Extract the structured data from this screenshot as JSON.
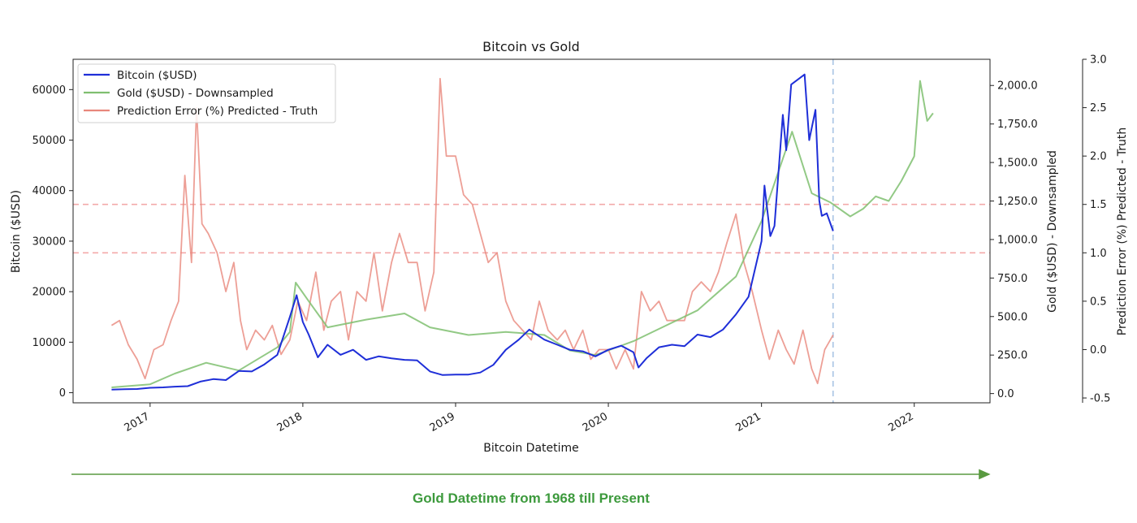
{
  "chart_data": {
    "type": "line",
    "title": "Bitcoin vs Gold",
    "xlabel": "Bitcoin Datetime",
    "x_ticks": [
      "2017",
      "2018",
      "2019",
      "2020",
      "2021",
      "2022"
    ],
    "xlim": [
      "2016-07-01",
      "2022-07-01"
    ],
    "y_axes": [
      {
        "id": "btc",
        "label": "Bitcoin ($USD)",
        "side": "left",
        "ylim": [
          -2000,
          66000
        ],
        "ticks": [
          "0",
          "10000",
          "20000",
          "30000",
          "40000",
          "50000",
          "60000"
        ]
      },
      {
        "id": "gold",
        "label": "Gold ($USD) - Downsampled",
        "side": "right",
        "ylim": [
          -60,
          2170
        ],
        "ticks": [
          "0.0",
          "250.0",
          "500.0",
          "750.0",
          "1,000.0",
          "1,250.0",
          "1,500.0",
          "1,750.0",
          "2,000.0"
        ]
      },
      {
        "id": "err",
        "label": "Prediction Error (%) Predicted - Truth",
        "side": "right-outer",
        "ylim": [
          -0.55,
          3.0
        ],
        "ticks": [
          "-0.5",
          "0.0",
          "0.5",
          "1.0",
          "1.5",
          "2.0",
          "2.5",
          "3.0"
        ]
      }
    ],
    "legend": {
      "placement": "top-left",
      "entries": [
        "Bitcoin ($USD)",
        "Gold ($USD) - Downsampled",
        "Prediction Error (%) Predicted - Truth"
      ]
    },
    "colors": {
      "bitcoin": "#1f2fd8",
      "gold": "#7fbf70",
      "error": "#e8877c",
      "hline": "#f3aaaa",
      "vline": "#a9c4e4",
      "arrow": "#5a9a40"
    },
    "series": [
      {
        "name": "Bitcoin ($USD)",
        "axis": "btc",
        "x": [
          "2016-10-01",
          "2016-11-01",
          "2016-12-01",
          "2017-01-01",
          "2017-02-01",
          "2017-03-01",
          "2017-04-01",
          "2017-05-01",
          "2017-06-01",
          "2017-07-01",
          "2017-08-01",
          "2017-09-01",
          "2017-10-01",
          "2017-11-01",
          "2017-12-01",
          "2017-12-17",
          "2018-01-01",
          "2018-01-15",
          "2018-02-06",
          "2018-03-01",
          "2018-04-01",
          "2018-05-01",
          "2018-06-01",
          "2018-07-01",
          "2018-08-01",
          "2018-09-01",
          "2018-10-01",
          "2018-11-01",
          "2018-12-01",
          "2019-01-01",
          "2019-02-01",
          "2019-03-01",
          "2019-04-01",
          "2019-05-01",
          "2019-06-01",
          "2019-06-26",
          "2019-08-01",
          "2019-09-01",
          "2019-10-01",
          "2019-11-01",
          "2019-12-01",
          "2020-01-01",
          "2020-02-01",
          "2020-03-01",
          "2020-03-13",
          "2020-04-01",
          "2020-05-01",
          "2020-06-01",
          "2020-07-01",
          "2020-08-01",
          "2020-09-01",
          "2020-10-01",
          "2020-11-01",
          "2020-12-01",
          "2021-01-01",
          "2021-01-08",
          "2021-01-22",
          "2021-02-01",
          "2021-02-21",
          "2021-03-01",
          "2021-03-13",
          "2021-04-14",
          "2021-04-25",
          "2021-05-10",
          "2021-05-19",
          "2021-05-25",
          "2021-06-06",
          "2021-06-21"
        ],
        "values": [
          610,
          700,
          740,
          980,
          1050,
          1200,
          1300,
          2200,
          2700,
          2500,
          4300,
          4200,
          5600,
          7500,
          15000,
          19300,
          14000,
          11500,
          7000,
          9500,
          7500,
          8500,
          6500,
          7200,
          6800,
          6500,
          6400,
          4200,
          3500,
          3600,
          3600,
          4000,
          5500,
          8500,
          10500,
          12500,
          10500,
          9500,
          8500,
          8200,
          7200,
          8500,
          9300,
          8000,
          5000,
          6800,
          9000,
          9500,
          9200,
          11500,
          11000,
          12500,
          15500,
          19000,
          30000,
          41000,
          31000,
          33000,
          55000,
          48000,
          61000,
          63000,
          50000,
          56000,
          38000,
          35000,
          35500,
          32000
        ]
      },
      {
        "name": "Gold ($USD) - Downsampled",
        "axis": "gold",
        "x": [
          "2016-10-01",
          "2017-01-01",
          "2017-03-01",
          "2017-05-15",
          "2017-08-01",
          "2017-11-01",
          "2017-12-01",
          "2017-12-15",
          "2018-01-15",
          "2018-03-01",
          "2018-06-01",
          "2018-09-01",
          "2018-11-01",
          "2019-02-01",
          "2019-05-01",
          "2019-08-01",
          "2019-10-01",
          "2019-12-01",
          "2020-03-01",
          "2020-05-01",
          "2020-08-01",
          "2020-11-01",
          "2021-01-01",
          "2021-03-15",
          "2021-05-01",
          "2021-06-15",
          "2021-08-01",
          "2021-09-01",
          "2021-10-01",
          "2021-11-01",
          "2021-12-01",
          "2022-01-01",
          "2022-01-15",
          "2022-02-01",
          "2022-02-15"
        ],
        "values": [
          40,
          60,
          130,
          200,
          150,
          300,
          400,
          720,
          600,
          430,
          480,
          520,
          430,
          380,
          400,
          380,
          280,
          250,
          340,
          420,
          540,
          760,
          1120,
          1700,
          1300,
          1240,
          1150,
          1200,
          1280,
          1250,
          1380,
          1540,
          2030,
          1770,
          1820
        ]
      },
      {
        "name": "Prediction Error (%) Predicted - Truth",
        "axis": "err",
        "x": [
          "2016-10-01",
          "2016-10-20",
          "2016-11-10",
          "2016-12-01",
          "2016-12-20",
          "2017-01-10",
          "2017-02-01",
          "2017-02-20",
          "2017-03-10",
          "2017-03-25",
          "2017-04-10",
          "2017-04-22",
          "2017-05-05",
          "2017-05-20",
          "2017-06-10",
          "2017-07-01",
          "2017-07-20",
          "2017-08-05",
          "2017-08-20",
          "2017-09-10",
          "2017-10-01",
          "2017-10-20",
          "2017-11-10",
          "2017-12-01",
          "2017-12-20",
          "2018-01-10",
          "2018-02-01",
          "2018-02-20",
          "2018-03-10",
          "2018-04-01",
          "2018-04-20",
          "2018-05-10",
          "2018-06-01",
          "2018-06-20",
          "2018-07-10",
          "2018-08-01",
          "2018-08-20",
          "2018-09-10",
          "2018-10-01",
          "2018-10-20",
          "2018-11-10",
          "2018-11-25",
          "2018-12-10",
          "2019-01-01",
          "2019-01-20",
          "2019-02-10",
          "2019-03-01",
          "2019-03-20",
          "2019-04-10",
          "2019-05-01",
          "2019-05-20",
          "2019-06-10",
          "2019-07-01",
          "2019-07-20",
          "2019-08-10",
          "2019-09-01",
          "2019-09-20",
          "2019-10-10",
          "2019-11-01",
          "2019-11-20",
          "2019-12-10",
          "2020-01-01",
          "2020-01-20",
          "2020-02-10",
          "2020-03-01",
          "2020-03-20",
          "2020-04-10",
          "2020-05-01",
          "2020-05-20",
          "2020-06-10",
          "2020-07-01",
          "2020-07-20",
          "2020-08-10",
          "2020-09-01",
          "2020-09-20",
          "2020-10-10",
          "2020-11-01",
          "2020-11-20",
          "2020-12-10",
          "2021-01-01",
          "2021-01-20",
          "2021-02-10",
          "2021-03-01",
          "2021-03-20",
          "2021-04-10",
          "2021-05-01",
          "2021-05-15",
          "2021-06-01",
          "2021-06-21"
        ],
        "values": [
          0.25,
          0.3,
          0.05,
          -0.1,
          -0.3,
          0.0,
          0.05,
          0.3,
          0.5,
          1.8,
          0.9,
          2.5,
          1.3,
          1.2,
          1.0,
          0.6,
          0.9,
          0.3,
          0.0,
          0.2,
          0.1,
          0.25,
          -0.05,
          0.1,
          0.5,
          0.3,
          0.8,
          0.2,
          0.5,
          0.6,
          0.1,
          0.6,
          0.5,
          1.0,
          0.4,
          0.9,
          1.2,
          0.9,
          0.9,
          0.4,
          0.8,
          2.8,
          2.0,
          2.0,
          1.6,
          1.5,
          1.2,
          0.9,
          1.0,
          0.5,
          0.3,
          0.2,
          0.1,
          0.5,
          0.2,
          0.1,
          0.2,
          0.0,
          0.2,
          -0.1,
          0.0,
          0.0,
          -0.2,
          0.0,
          -0.2,
          0.6,
          0.4,
          0.5,
          0.3,
          0.3,
          0.3,
          0.6,
          0.7,
          0.6,
          0.8,
          1.1,
          1.4,
          0.9,
          0.6,
          0.2,
          -0.1,
          0.2,
          0.0,
          -0.15,
          0.2,
          -0.2,
          -0.35,
          0.0,
          0.15
        ]
      }
    ],
    "reference_lines": [
      {
        "orientation": "horizontal",
        "axis": "err",
        "value": 1.0,
        "style": "dashed"
      },
      {
        "orientation": "horizontal",
        "axis": "err",
        "value": 1.5,
        "style": "dashed"
      },
      {
        "orientation": "vertical",
        "x": "2021-06-21",
        "style": "dashed"
      }
    ],
    "annotation": "Gold Datetime from 1968 till Present"
  }
}
